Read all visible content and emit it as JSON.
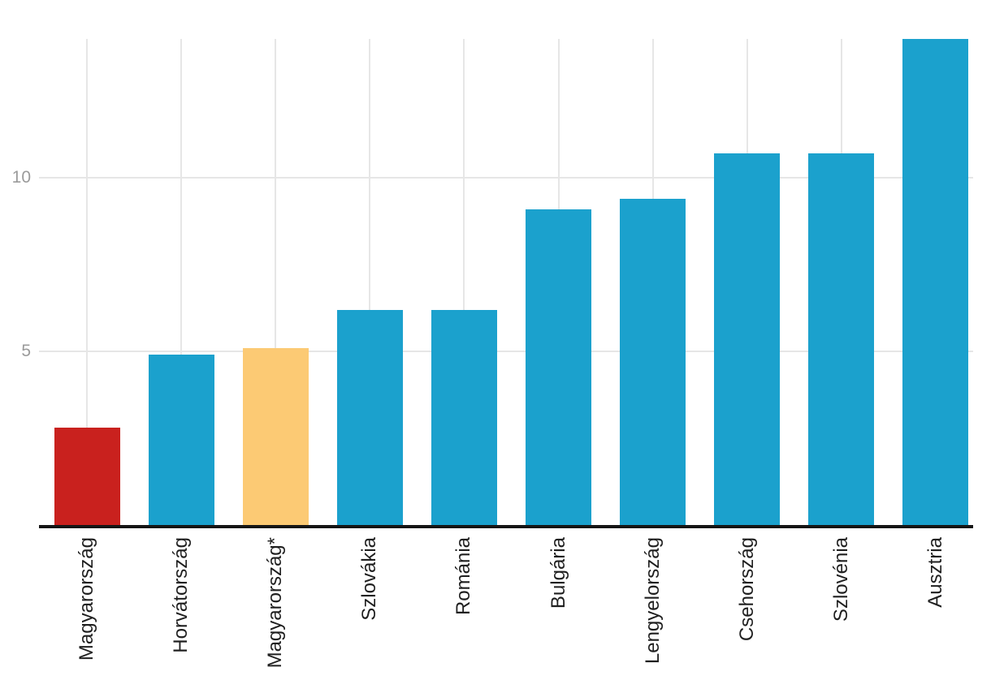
{
  "chart_data": {
    "type": "bar",
    "title": "",
    "xlabel": "",
    "ylabel": "",
    "categories": [
      "Magyarország",
      "Horvátország",
      "Magyarország*",
      "Szlovákia",
      "Románia",
      "Bulgária",
      "Lengyelország",
      "Csehország",
      "Szlovénia",
      "Ausztria"
    ],
    "values": [
      2.8,
      4.9,
      5.1,
      6.2,
      6.2,
      9.1,
      9.4,
      10.7,
      10.7,
      14.0
    ],
    "bar_colors": [
      "#c9211e",
      "#1ba1cd",
      "#fcca74",
      "#1ba1cd",
      "#1ba1cd",
      "#1ba1cd",
      "#1ba1cd",
      "#1ba1cd",
      "#1ba1cd",
      "#1ba1cd"
    ],
    "yticks": [
      5,
      10
    ],
    "ytick_labels": [
      "5",
      "10"
    ],
    "ylim": [
      0,
      14
    ],
    "grid": {
      "horizontal_at_yticks": true,
      "vertical_at_category_centers": true
    },
    "legend": "none",
    "colors": {
      "default_bar": "#1ba1cd",
      "highlight_red": "#c9211e",
      "highlight_orange": "#fcca74",
      "gridline": "#e6e6e6",
      "axis_line": "#151515",
      "ytick_text": "#9b9b9b",
      "xtick_text": "#1f1f1f",
      "background": "#ffffff"
    }
  }
}
